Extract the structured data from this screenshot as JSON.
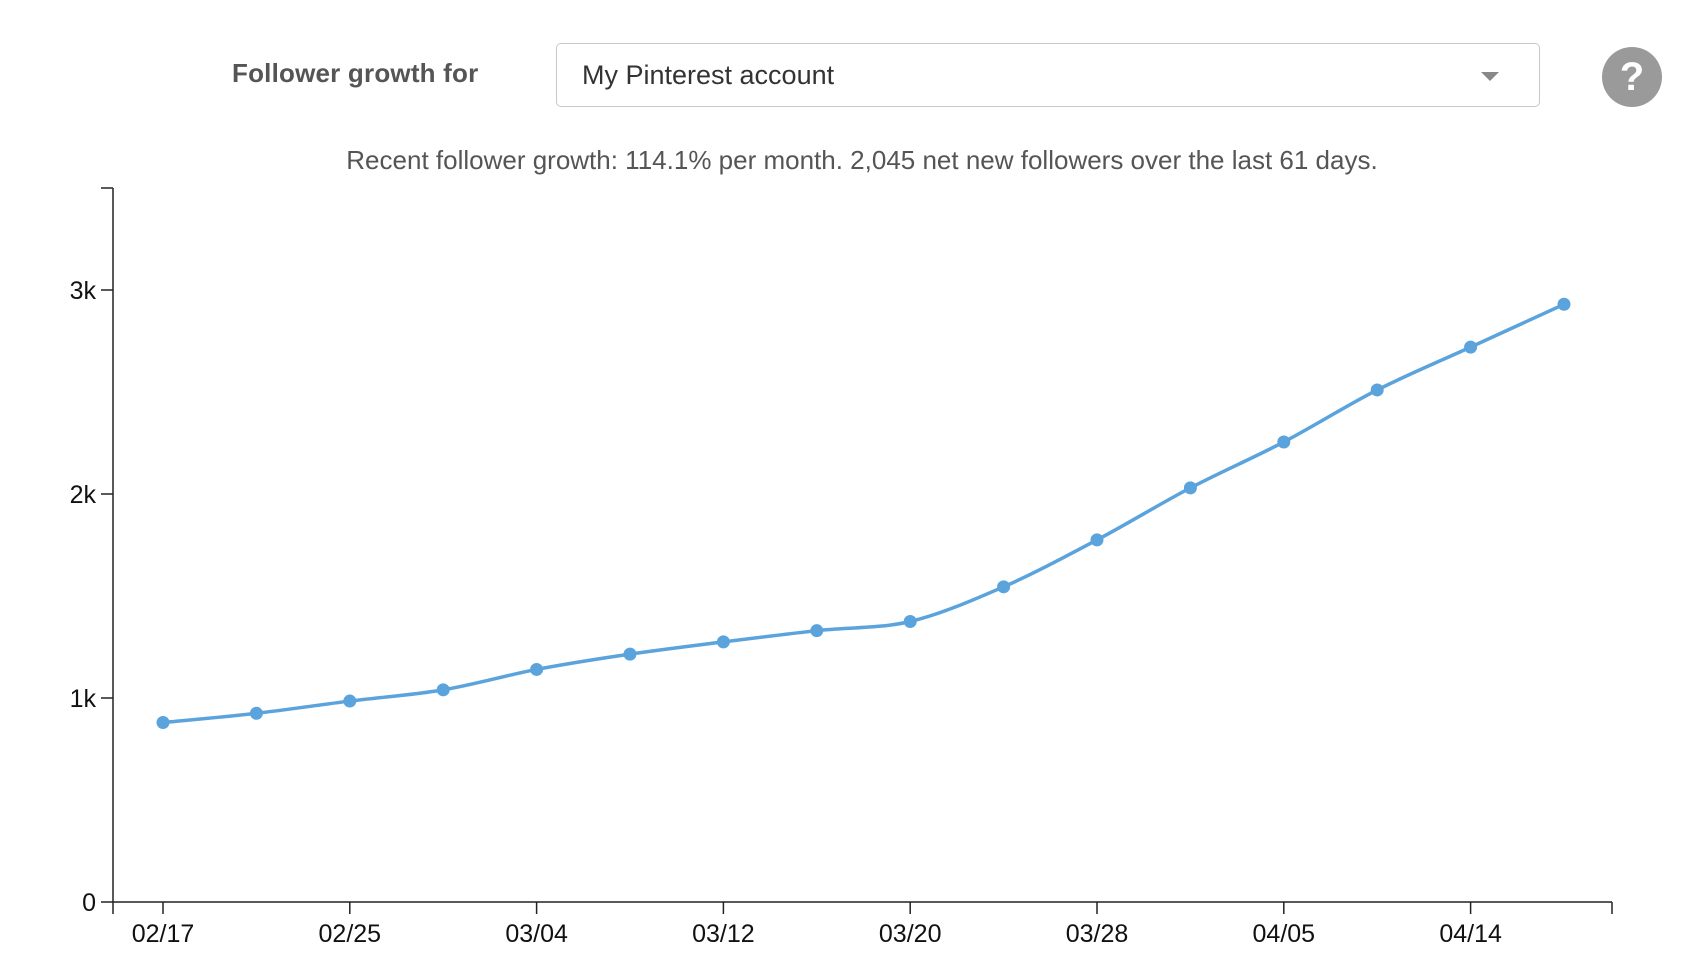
{
  "header": {
    "label": "Follower growth for",
    "account_selected": "My Pinterest account",
    "help_symbol": "?"
  },
  "summary": "Recent follower growth: 114.1% per month. 2,045 net new followers over the last 61 days.",
  "icons": {
    "dropdown": "chevron-down-icon",
    "help": "question-mark-icon"
  },
  "colors": {
    "line": "#5ba3dc",
    "axis": "#222222"
  },
  "chart_data": {
    "type": "line",
    "title": "",
    "xlabel": "",
    "ylabel": "",
    "x": [
      "02/17",
      "02/21",
      "02/25",
      "02/29",
      "03/04",
      "03/08",
      "03/12",
      "03/16",
      "03/20",
      "03/24",
      "03/28",
      "04/01",
      "04/05",
      "04/09",
      "04/13",
      "04/17"
    ],
    "series": [
      {
        "values": [
          880,
          925,
          985,
          1040,
          1140,
          1215,
          1275,
          1330,
          1375,
          1545,
          1775,
          2030,
          2255,
          2510,
          2720,
          2930
        ]
      }
    ],
    "xticks": [
      "02/17",
      "02/25",
      "03/04",
      "03/12",
      "03/20",
      "03/28",
      "04/05",
      "04/14"
    ],
    "yticks": [
      {
        "value": 0,
        "label": "0"
      },
      {
        "value": 1000,
        "label": "1k"
      },
      {
        "value": 2000,
        "label": "2k"
      },
      {
        "value": 3000,
        "label": "3k"
      }
    ],
    "ylim": [
      0,
      3500
    ],
    "grid": false,
    "legend": "none"
  }
}
